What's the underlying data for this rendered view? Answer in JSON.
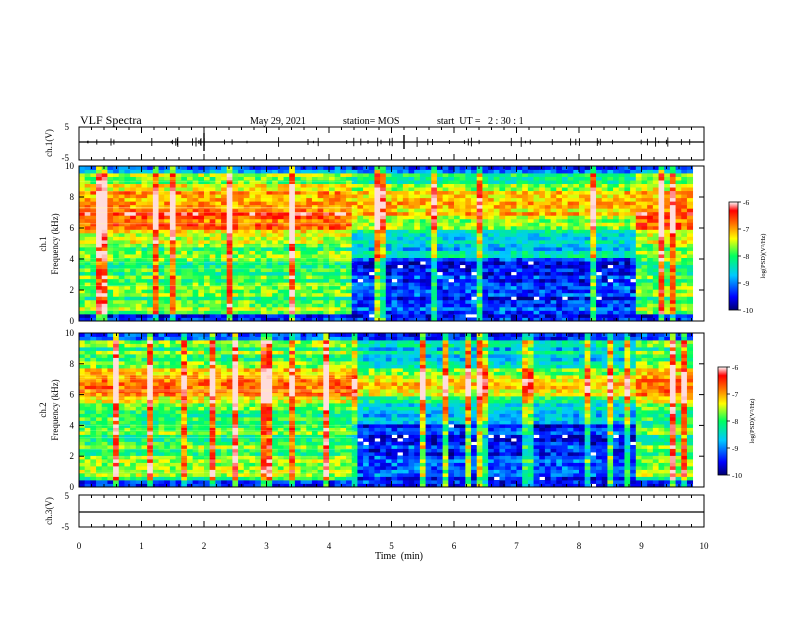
{
  "header": {
    "title": "VLF Spectra",
    "date": "May 29, 2021",
    "station": "station= MOS",
    "start_ut": "start  UT =   2 : 30 : 1"
  },
  "chart_data": [
    {
      "id": "ch1-waveform",
      "type": "line",
      "ylabel": "ch.1(V)",
      "ylim": [
        -5,
        5
      ],
      "yticks": [
        "5",
        "-5"
      ],
      "trace_level": 0,
      "xlim": [
        0,
        10
      ]
    },
    {
      "id": "ch1-spectrogram",
      "type": "heatmap",
      "ylabel": "ch.1\nFrequency (kHz)",
      "ylabel_lines": [
        "ch.1",
        "Frequency (kHz)"
      ],
      "ylim": [
        0,
        10
      ],
      "yticks": [
        "0",
        "2",
        "4",
        "6",
        "8",
        "10"
      ],
      "xlim": [
        0,
        10
      ],
      "colorbar": {
        "label": "log(PSD)(V²/Hz)",
        "range": [
          -10,
          -6
        ],
        "ticks": [
          "-6",
          "-7",
          "-8",
          "-9",
          "-10"
        ]
      },
      "regimes": [
        {
          "from": 0.0,
          "to": 4.4,
          "state": "broadband",
          "intense_band_khz": [
            5,
            9
          ]
        },
        {
          "from": 4.4,
          "to": 8.95,
          "state": "quiet_low_band",
          "intense_band_khz": [
            5.5,
            9.5
          ]
        },
        {
          "from": 8.95,
          "to": 9.85,
          "state": "broadband",
          "intense_band_khz": [
            5,
            9
          ]
        }
      ]
    },
    {
      "id": "ch2-spectrogram",
      "type": "heatmap",
      "ylabel": "ch.2\nFrequency (kHz)",
      "ylabel_lines": [
        "ch.2",
        "Frequency (kHz)"
      ],
      "ylim": [
        0,
        10
      ],
      "yticks": [
        "0",
        "2",
        "4",
        "6",
        "8",
        "10"
      ],
      "xlim": [
        0,
        10
      ],
      "colorbar": {
        "label": "log(PSD)(V²/Hz)",
        "range": [
          -10,
          -6
        ],
        "ticks": [
          "-6",
          "-7",
          "-8",
          "-9",
          "-10"
        ]
      },
      "regimes": [
        {
          "from": 0.0,
          "to": 4.4,
          "state": "broadband",
          "intense_band_khz": [
            5.5,
            8
          ]
        },
        {
          "from": 4.4,
          "to": 8.95,
          "state": "quiet_low_band",
          "intense_band_khz": [
            5.5,
            8
          ]
        },
        {
          "from": 8.95,
          "to": 9.85,
          "state": "broadband",
          "intense_band_khz": [
            5.5,
            8
          ]
        }
      ]
    },
    {
      "id": "ch3-waveform",
      "type": "line",
      "ylabel": "ch.3(V)",
      "ylim": [
        -5,
        5
      ],
      "yticks": [
        "5",
        "-5"
      ],
      "trace_level": 0,
      "xlim": [
        0,
        10
      ]
    }
  ],
  "xaxis": {
    "label": "Time  (min)",
    "range": [
      0,
      10
    ],
    "ticks": [
      "0",
      "1",
      "2",
      "3",
      "4",
      "5",
      "6",
      "7",
      "8",
      "9",
      "10"
    ]
  },
  "colors": {
    "axis": "#000000",
    "colormap": [
      "#000080",
      "#0000ff",
      "#00c8ff",
      "#00ff80",
      "#ffff00",
      "#ff8000",
      "#ff0000",
      "#ffffff"
    ]
  }
}
